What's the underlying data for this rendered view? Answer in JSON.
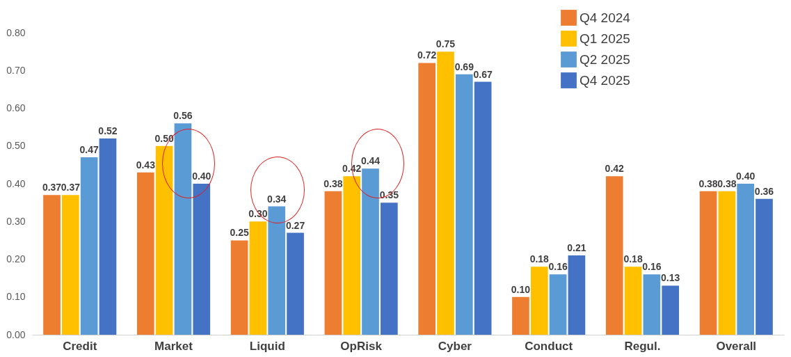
{
  "chart_data": {
    "type": "bar",
    "categories": [
      "Credit",
      "Market",
      "Liquid",
      "OpRisk",
      "Cyber",
      "Conduct",
      "Regul.",
      "Overall"
    ],
    "series": [
      {
        "name": "Q4 2024",
        "color": "#ed7d31",
        "values": [
          0.37,
          0.43,
          0.25,
          0.38,
          0.72,
          0.1,
          0.42,
          0.38
        ],
        "value_labels": [
          "0.37",
          "0.43",
          "0.25",
          "0.38",
          "0.72",
          "0.10",
          "0.42",
          "0.38"
        ]
      },
      {
        "name": "Q1 2025",
        "color": "#ffc000",
        "values": [
          0.37,
          0.5,
          0.3,
          0.42,
          0.75,
          0.18,
          0.18,
          0.38
        ],
        "value_labels": [
          "0.37",
          "0.50",
          "0.30",
          "0.42",
          "0.75",
          "0.18",
          "0.18",
          "0.38"
        ]
      },
      {
        "name": "Q2 2025",
        "color": "#5b9bd5",
        "values": [
          0.47,
          0.56,
          0.34,
          0.44,
          0.69,
          0.16,
          0.16,
          0.4
        ],
        "value_labels": [
          "0.47",
          "0.56",
          "0.34",
          "0.44",
          "0.69",
          "0.16",
          "0.16",
          "0.40"
        ]
      },
      {
        "name": "Q4 2025",
        "color": "#4472c4",
        "values": [
          0.52,
          0.4,
          0.27,
          0.35,
          0.67,
          0.21,
          0.13,
          0.36
        ],
        "value_labels": [
          "0.52",
          "0.40",
          "0.27",
          "0.35",
          "0.67",
          "0.21",
          "0.13",
          "0.36"
        ]
      }
    ],
    "ylim": [
      0,
      0.8
    ],
    "yticks": [
      {
        "value": 0,
        "label": "0.00"
      },
      {
        "value": 0.1,
        "label": "0.10"
      },
      {
        "value": 0.2,
        "label": "0.20"
      },
      {
        "value": 0.3,
        "label": "0.30"
      },
      {
        "value": 0.4,
        "label": "0.40"
      },
      {
        "value": 0.5,
        "label": "0.50"
      },
      {
        "value": 0.6,
        "label": "0.60"
      },
      {
        "value": 0.7,
        "label": "0.70"
      },
      {
        "value": 0.8,
        "label": "0.80"
      }
    ],
    "grid": false,
    "legend": "top right"
  }
}
